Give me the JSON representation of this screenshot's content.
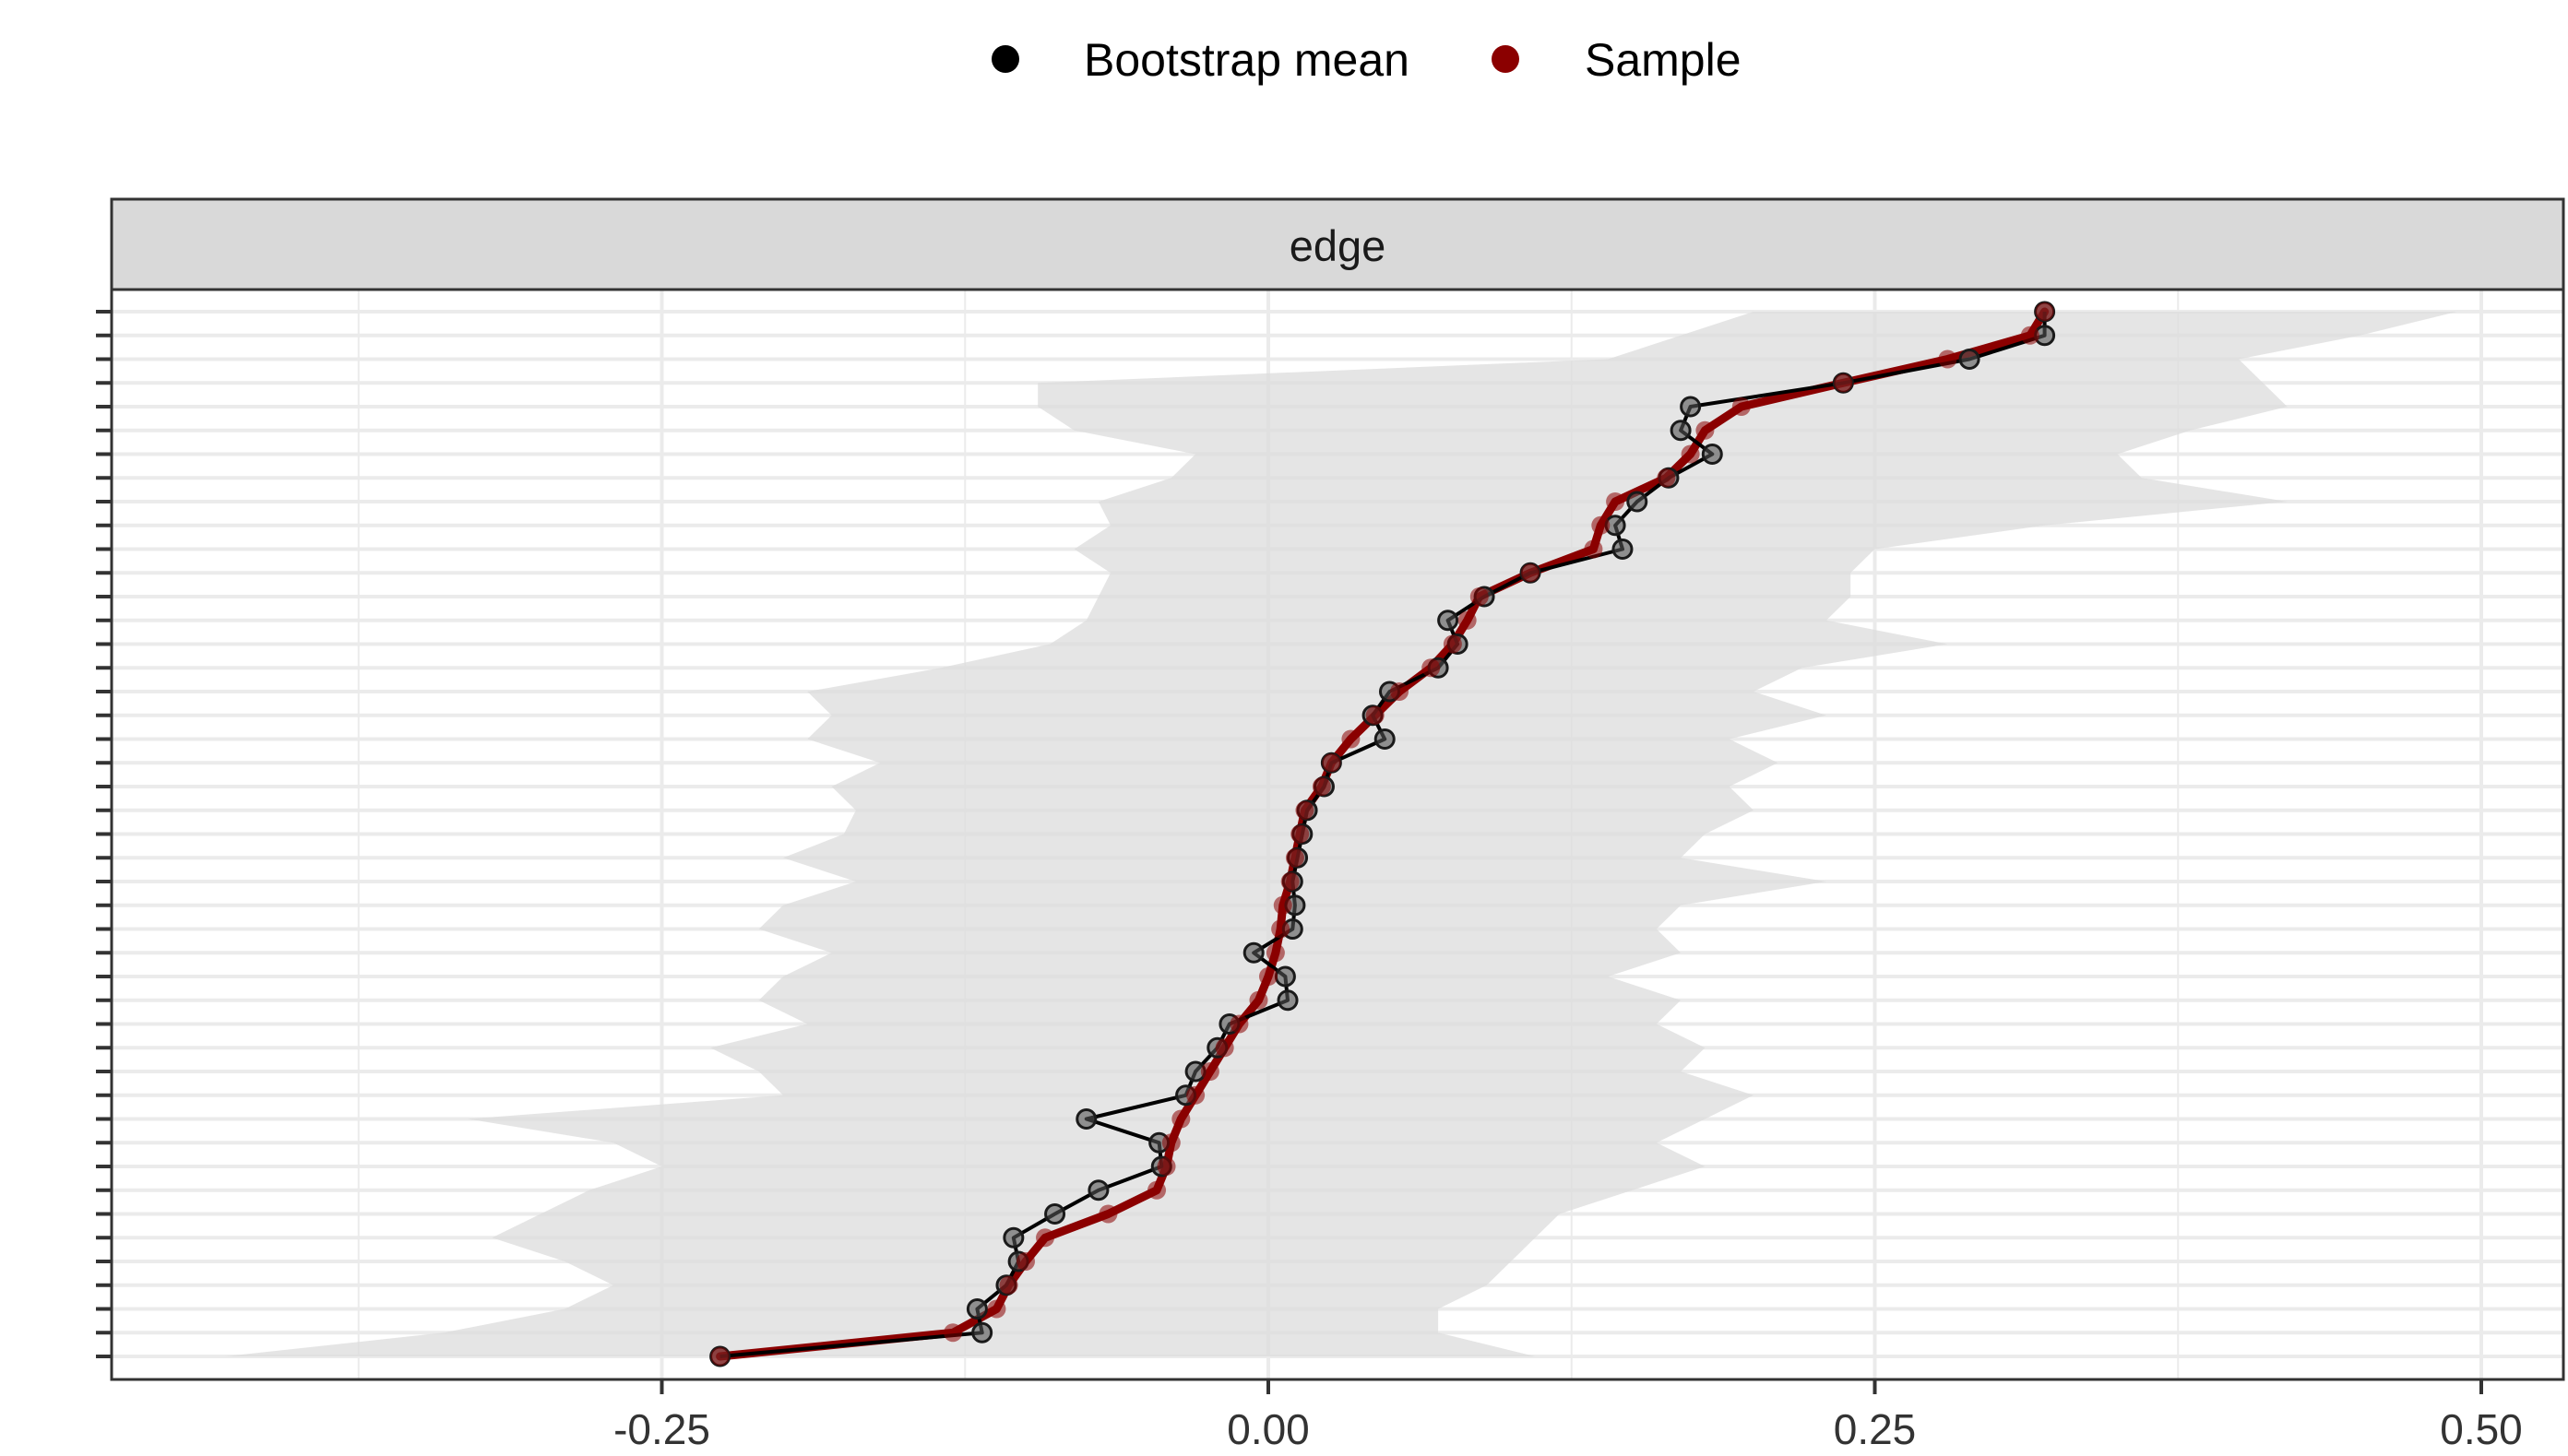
{
  "colors": {
    "bootstrap_mean": "#000000",
    "sample": "#8b0000",
    "ci_band": "#dcdcdc",
    "strip_fill": "#d9d9d9",
    "grid": "#ebebeb"
  },
  "chart_data": {
    "type": "line",
    "title": "",
    "xlabel": "",
    "ylabel": "",
    "facet_label": "edge",
    "legend": {
      "placement": "top",
      "entries": [
        {
          "key": "bootstrap_mean",
          "label": "Bootstrap mean"
        },
        {
          "key": "sample",
          "label": "Sample"
        }
      ]
    },
    "xlim": [
      -0.5,
      0.53
    ],
    "x_ticks": [
      -0.25,
      0.0,
      0.25,
      0.5
    ],
    "x_tick_labels": [
      "-0.25",
      "0.00",
      "0.25",
      "0.50"
    ],
    "n_edges": 45,
    "grid": true,
    "series": [
      {
        "name": "Sample",
        "values": [
          0.32,
          0.314,
          0.28,
          0.237,
          0.195,
          0.18,
          0.174,
          0.164,
          0.143,
          0.137,
          0.134,
          0.108,
          0.087,
          0.082,
          0.076,
          0.067,
          0.054,
          0.044,
          0.034,
          0.026,
          0.022,
          0.015,
          0.013,
          0.011,
          0.009,
          0.006,
          0.005,
          0.003,
          0.0,
          -0.004,
          -0.012,
          -0.018,
          -0.024,
          -0.03,
          -0.036,
          -0.04,
          -0.042,
          -0.046,
          -0.066,
          -0.092,
          -0.1,
          -0.107,
          -0.112,
          -0.13,
          -0.226
        ]
      },
      {
        "name": "Bootstrap mean",
        "values": [
          0.32,
          0.32,
          0.289,
          0.237,
          0.174,
          0.17,
          0.183,
          0.165,
          0.152,
          0.143,
          0.146,
          0.108,
          0.089,
          0.074,
          0.078,
          0.07,
          0.05,
          0.043,
          0.048,
          0.026,
          0.023,
          0.016,
          0.014,
          0.012,
          0.01,
          0.011,
          0.01,
          -0.006,
          0.007,
          0.008,
          -0.016,
          -0.021,
          -0.03,
          -0.034,
          -0.075,
          -0.045,
          -0.044,
          -0.07,
          -0.088,
          -0.105,
          -0.103,
          -0.108,
          -0.12,
          -0.118,
          -0.226
        ]
      }
    ],
    "ci_lower": [
      0.2,
      0.17,
      0.14,
      -0.095,
      -0.095,
      -0.08,
      -0.03,
      -0.04,
      -0.07,
      -0.065,
      -0.08,
      -0.065,
      -0.07,
      -0.075,
      -0.09,
      -0.135,
      -0.19,
      -0.18,
      -0.19,
      -0.16,
      -0.18,
      -0.17,
      -0.175,
      -0.2,
      -0.17,
      -0.2,
      -0.21,
      -0.18,
      -0.2,
      -0.21,
      -0.19,
      -0.23,
      -0.21,
      -0.2,
      -0.33,
      -0.27,
      -0.25,
      -0.28,
      -0.3,
      -0.32,
      -0.29,
      -0.27,
      -0.29,
      -0.34,
      -0.43
    ],
    "ci_upper": [
      0.49,
      0.45,
      0.4,
      0.41,
      0.42,
      0.38,
      0.35,
      0.36,
      0.42,
      0.32,
      0.25,
      0.24,
      0.24,
      0.23,
      0.28,
      0.22,
      0.2,
      0.23,
      0.19,
      0.21,
      0.19,
      0.2,
      0.18,
      0.17,
      0.23,
      0.17,
      0.16,
      0.17,
      0.14,
      0.17,
      0.16,
      0.18,
      0.17,
      0.2,
      0.18,
      0.16,
      0.18,
      0.15,
      0.12,
      0.11,
      0.1,
      0.09,
      0.07,
      0.07,
      0.11
    ]
  }
}
